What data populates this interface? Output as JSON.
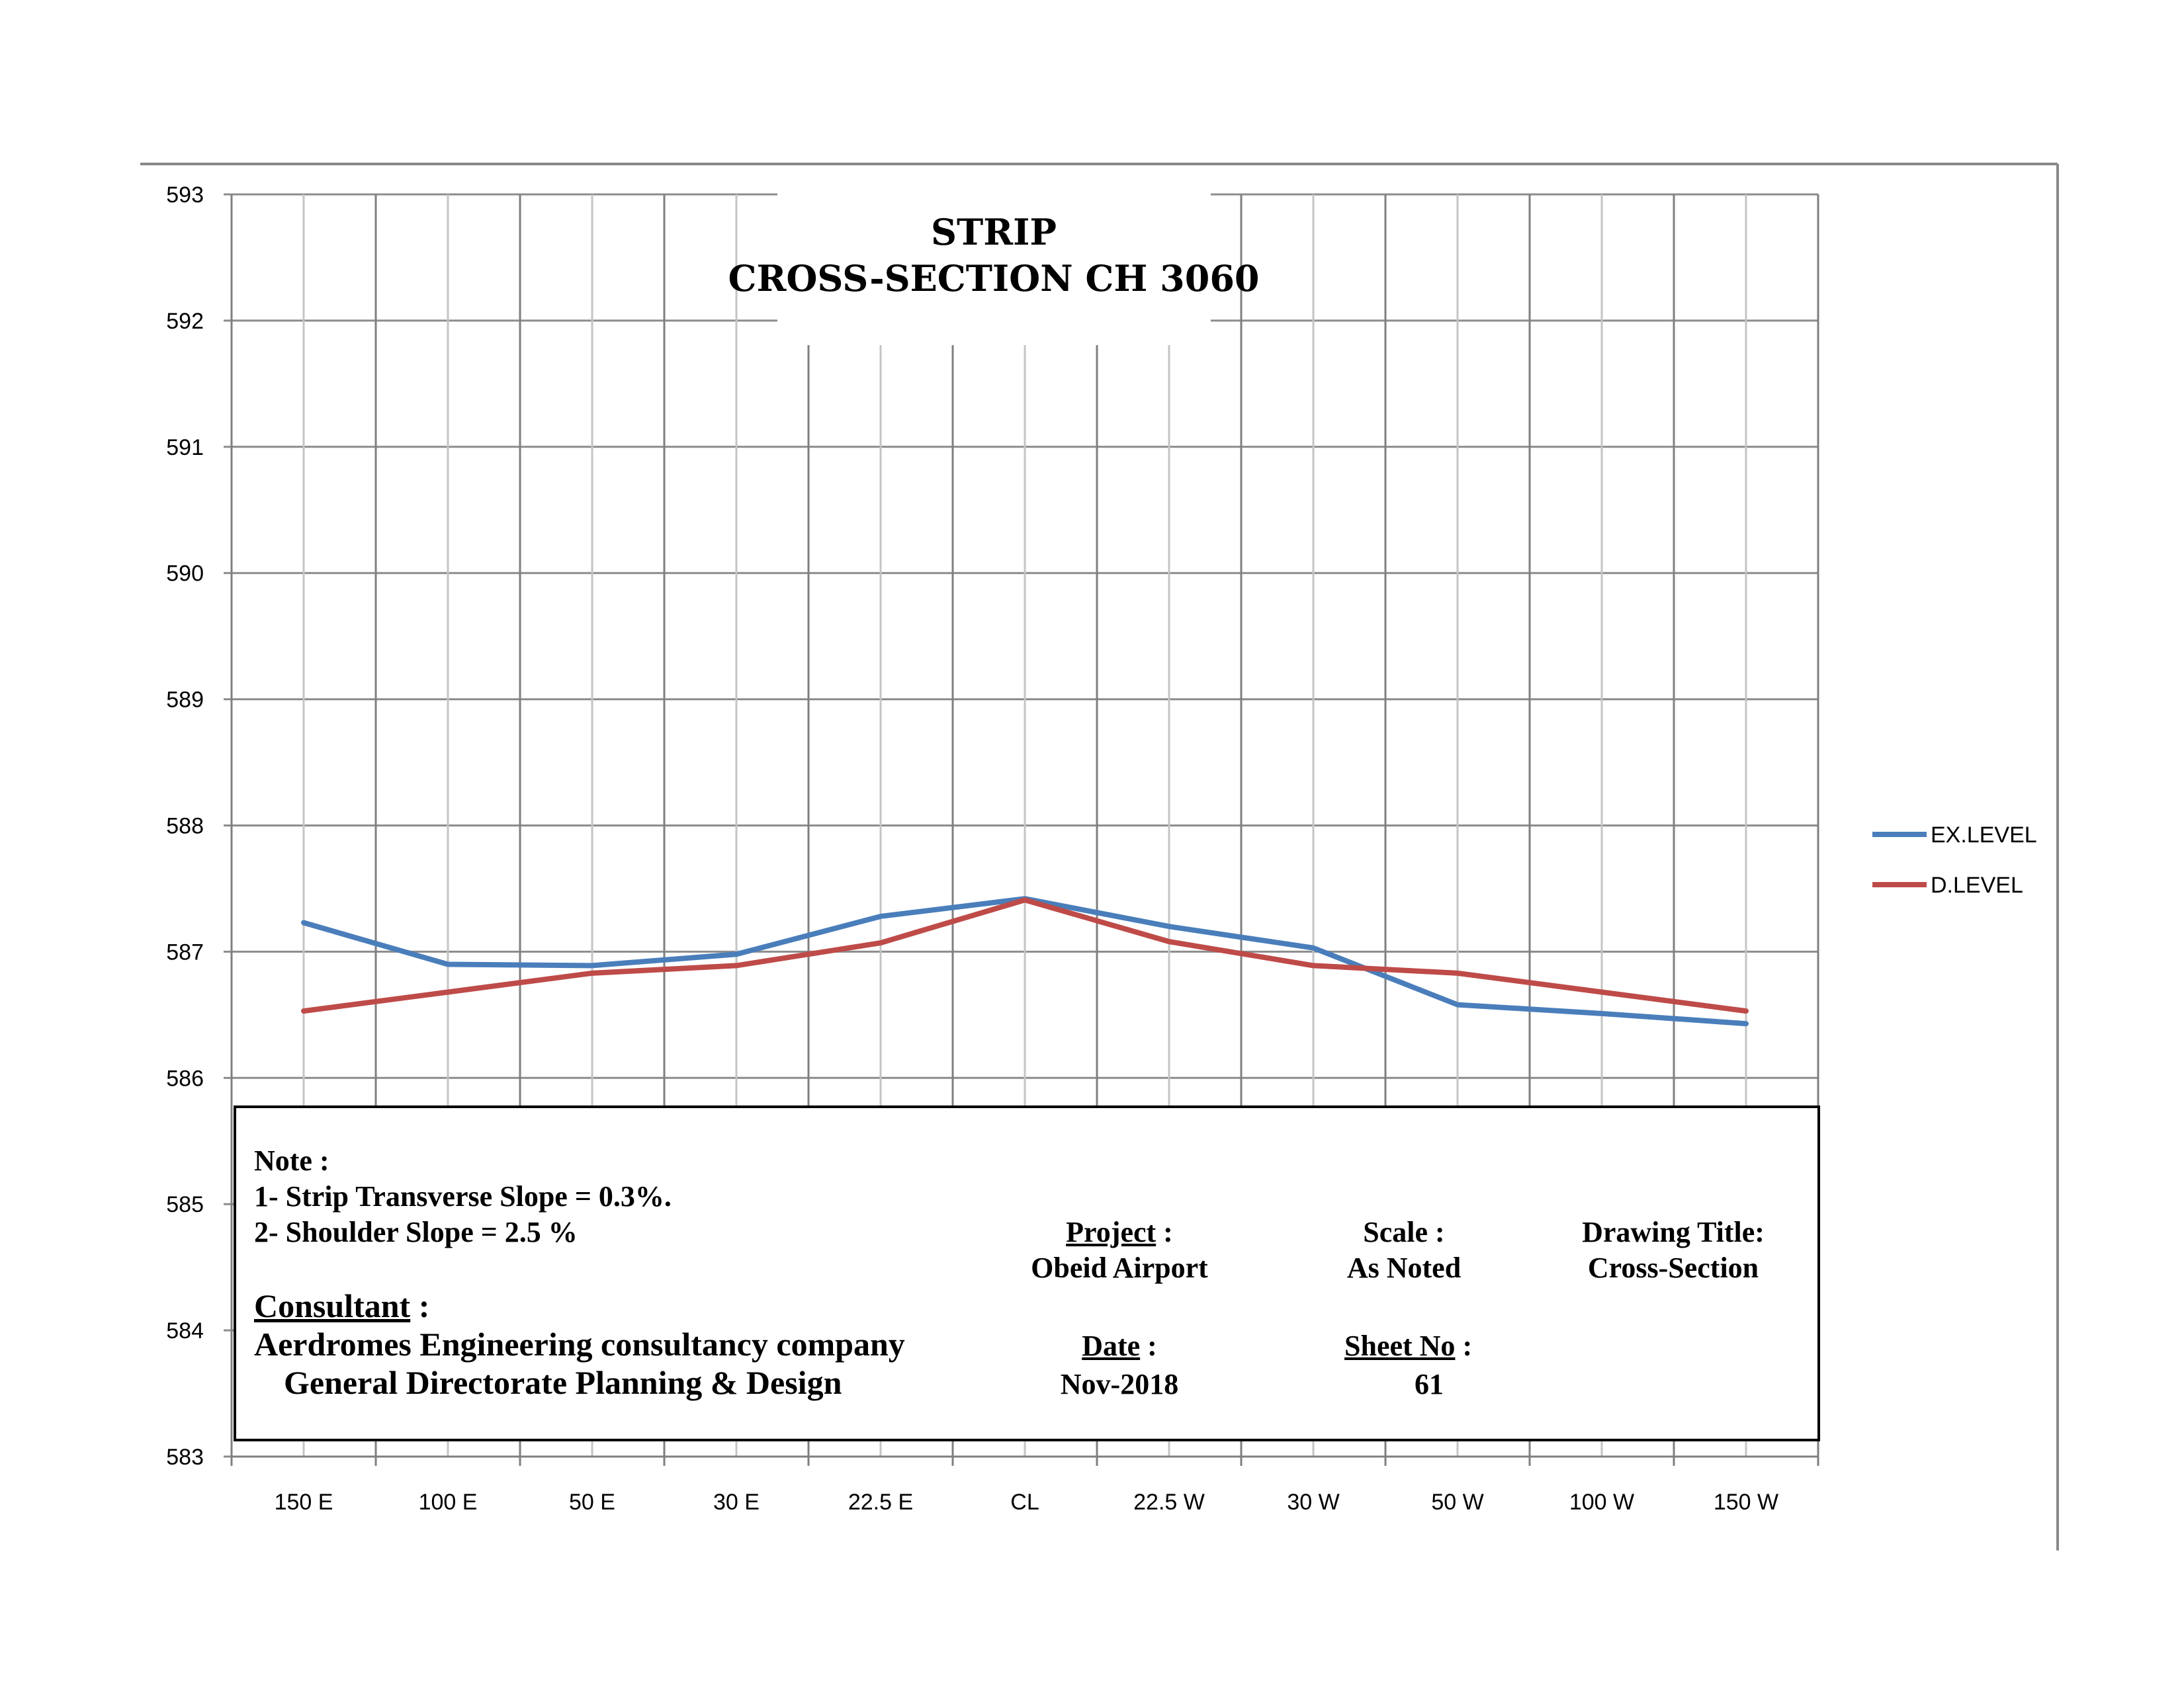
{
  "chart_data": {
    "type": "line",
    "title": "STRIP",
    "subtitle": "CROSS-SECTION CH 3060",
    "categories": [
      "150 E",
      "100 E",
      "50 E",
      "30 E",
      "22.5 E",
      "CL",
      "22.5 W",
      "30 W",
      "50 W",
      "100 W",
      "150 W"
    ],
    "ylim": [
      583,
      593
    ],
    "yticks": [
      "593",
      "592",
      "591",
      "590",
      "589",
      "588",
      "587",
      "586",
      "585",
      "584",
      "583"
    ],
    "grid": true,
    "legend_position": "right",
    "series": [
      {
        "name": "EX.LEVEL",
        "color": "#4A7EBB",
        "values": [
          587.23,
          586.9,
          586.89,
          586.98,
          587.28,
          587.42,
          587.2,
          587.03,
          586.58,
          586.51,
          586.43
        ]
      },
      {
        "name": "D.LEVEL",
        "color": "#BE4B48",
        "values": [
          586.53,
          586.68,
          586.83,
          586.89,
          587.07,
          587.41,
          587.08,
          586.89,
          586.83,
          586.68,
          586.53
        ]
      }
    ]
  },
  "info": {
    "note_label": "Note :",
    "note_1": "1- Strip Transverse Slope = 0.3%.",
    "note_2": "2- Shoulder Slope = 2.5 %",
    "consultant_label": "Consultant",
    "consultant_colon": " :",
    "consultant_line1": "Aerdromes Engineering consultancy company",
    "consultant_line2": "General Directorate Planning & Design",
    "project_label": "Project",
    "project_colon": " :",
    "project_value": "Obeid Airport",
    "scale_label": "Scale :",
    "scale_value": "As Noted",
    "drawing_title_label": "Drawing Title:",
    "drawing_title_value": "Cross-Section",
    "date_label": "Date",
    "date_colon": " :",
    "date_value": "Nov-2018",
    "sheet_label": "Sheet No",
    "sheet_colon": "  :",
    "sheet_value": "61"
  }
}
